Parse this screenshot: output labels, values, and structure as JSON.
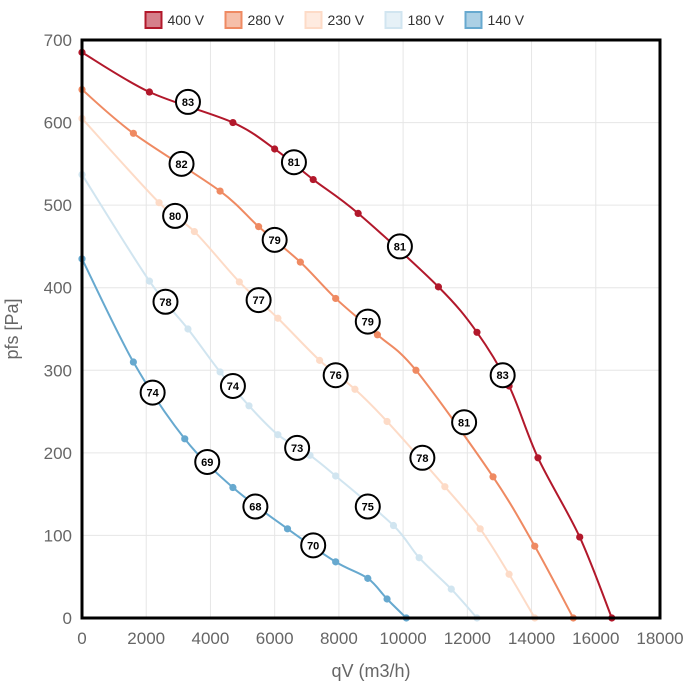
{
  "chart_data": {
    "type": "line",
    "title": "",
    "xlabel": "qV (m3/h)",
    "ylabel": "pfs [Pa]",
    "xlim": [
      0,
      18000
    ],
    "ylim": [
      0,
      700
    ],
    "x_ticks": [
      0,
      2000,
      4000,
      6000,
      8000,
      10000,
      12000,
      14000,
      16000,
      18000
    ],
    "y_ticks": [
      0,
      100,
      200,
      300,
      400,
      500,
      600,
      700
    ],
    "grid": true,
    "legend_position": "top-center",
    "series": [
      {
        "name": "400 V",
        "color": "#b2182b",
        "points": [
          [
            0,
            685
          ],
          [
            2100,
            637
          ],
          [
            4700,
            600
          ],
          [
            6000,
            568
          ],
          [
            7200,
            531
          ],
          [
            8600,
            490
          ],
          [
            11100,
            401
          ],
          [
            12300,
            346
          ],
          [
            13300,
            281
          ],
          [
            14200,
            194
          ],
          [
            15500,
            98
          ],
          [
            16500,
            0
          ]
        ]
      },
      {
        "name": "280 V",
        "color": "#ef8a62",
        "points": [
          [
            0,
            640
          ],
          [
            1600,
            587
          ],
          [
            4300,
            517
          ],
          [
            5500,
            474
          ],
          [
            6800,
            431
          ],
          [
            7900,
            387
          ],
          [
            9200,
            343
          ],
          [
            10400,
            300
          ],
          [
            12800,
            171
          ],
          [
            14100,
            87
          ],
          [
            15300,
            0
          ]
        ]
      },
      {
        "name": "230 V",
        "color": "#fddbc7",
        "points": [
          [
            0,
            605
          ],
          [
            2400,
            503
          ],
          [
            3500,
            468
          ],
          [
            4900,
            407
          ],
          [
            6100,
            363
          ],
          [
            7400,
            312
          ],
          [
            8500,
            277
          ],
          [
            9500,
            238
          ],
          [
            11300,
            159
          ],
          [
            12400,
            108
          ],
          [
            13300,
            53
          ],
          [
            14100,
            0
          ]
        ]
      },
      {
        "name": "180 V",
        "color": "#d1e5f0",
        "points": [
          [
            0,
            537
          ],
          [
            2100,
            408
          ],
          [
            3300,
            350
          ],
          [
            4300,
            298
          ],
          [
            5200,
            257
          ],
          [
            6100,
            222
          ],
          [
            7100,
            197
          ],
          [
            7900,
            172
          ],
          [
            9700,
            112
          ],
          [
            10500,
            73
          ],
          [
            11500,
            35
          ],
          [
            12300,
            0
          ]
        ]
      },
      {
        "name": "140 V",
        "color": "#67a9cf",
        "points": [
          [
            0,
            435
          ],
          [
            1600,
            310
          ],
          [
            3200,
            217
          ],
          [
            4700,
            158
          ],
          [
            6400,
            108
          ],
          [
            7900,
            68
          ],
          [
            8900,
            48
          ],
          [
            9500,
            23
          ],
          [
            10100,
            0
          ]
        ]
      }
    ],
    "annotations": [
      {
        "label": "83",
        "x": 3300,
        "y": 625
      },
      {
        "label": "82",
        "x": 3100,
        "y": 550
      },
      {
        "label": "80",
        "x": 2900,
        "y": 487
      },
      {
        "label": "78",
        "x": 2600,
        "y": 383
      },
      {
        "label": "74",
        "x": 2200,
        "y": 273
      },
      {
        "label": "81",
        "x": 6600,
        "y": 552
      },
      {
        "label": "79",
        "x": 6000,
        "y": 458
      },
      {
        "label": "77",
        "x": 5500,
        "y": 385
      },
      {
        "label": "74",
        "x": 4700,
        "y": 281
      },
      {
        "label": "69",
        "x": 3900,
        "y": 189
      },
      {
        "label": "81",
        "x": 9900,
        "y": 450
      },
      {
        "label": "79",
        "x": 8900,
        "y": 359
      },
      {
        "label": "76",
        "x": 7900,
        "y": 294
      },
      {
        "label": "73",
        "x": 6700,
        "y": 206
      },
      {
        "label": "68",
        "x": 5400,
        "y": 135
      },
      {
        "label": "83",
        "x": 13100,
        "y": 294
      },
      {
        "label": "81",
        "x": 11900,
        "y": 237
      },
      {
        "label": "78",
        "x": 10600,
        "y": 194
      },
      {
        "label": "75",
        "x": 8900,
        "y": 135
      },
      {
        "label": "70",
        "x": 7200,
        "y": 88
      }
    ]
  }
}
